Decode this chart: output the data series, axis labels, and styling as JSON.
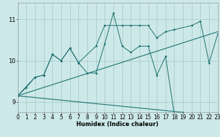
{
  "xlabel": "Humidex (Indice chaleur)",
  "bg_color": "#cde8e8",
  "grid_color": "#aacccc",
  "line_color": "#1a6e6e",
  "xlim": [
    0,
    23
  ],
  "ylim": [
    8.75,
    11.4
  ],
  "yticks": [
    9,
    10,
    11
  ],
  "xtick_labels": [
    "0",
    "1",
    "2",
    "3",
    "4",
    "5",
    "6",
    "7",
    "8",
    "9",
    "10",
    "11",
    "12",
    "13",
    "14",
    "15",
    "16",
    "17",
    "18",
    "19",
    "20",
    "21",
    "22",
    "23"
  ],
  "line1_x": [
    0,
    1,
    2,
    3,
    4,
    5,
    6,
    7,
    8,
    9,
    10,
    11,
    12,
    13,
    14,
    15,
    16,
    17,
    18,
    19
  ],
  "line1_y": [
    9.15,
    9.35,
    9.6,
    9.65,
    10.15,
    10.0,
    10.3,
    9.95,
    9.7,
    9.7,
    10.4,
    11.15,
    10.35,
    10.2,
    10.35,
    10.35,
    9.65,
    10.1,
    8.7,
    8.75
  ],
  "line2_x": [
    0,
    2,
    3,
    4,
    5,
    6,
    7,
    9,
    10,
    12,
    13,
    14,
    15,
    16,
    17,
    18,
    20,
    21,
    22,
    23
  ],
  "line2_y": [
    9.15,
    9.6,
    9.65,
    10.15,
    10.0,
    10.3,
    9.95,
    10.35,
    10.85,
    10.85,
    10.85,
    10.85,
    10.85,
    10.55,
    10.7,
    10.75,
    10.85,
    10.95,
    9.95,
    10.65
  ],
  "line3_x": [
    0,
    23
  ],
  "line3_y": [
    9.15,
    10.7
  ],
  "line4_x": [
    0,
    19
  ],
  "line4_y": [
    9.15,
    8.75
  ]
}
